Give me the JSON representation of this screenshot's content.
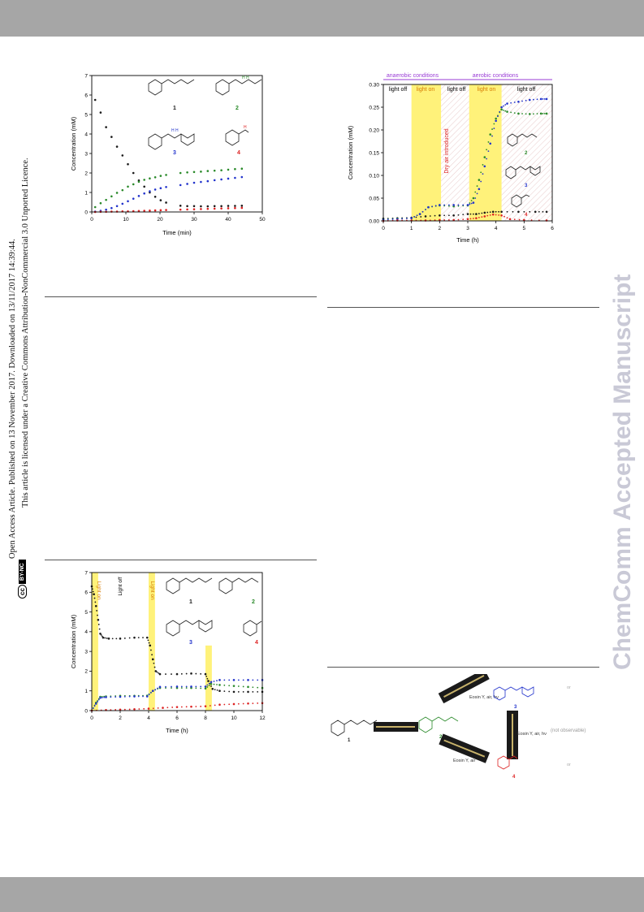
{
  "vertical_notice": {
    "line1": "Open Access Article. Published on 13 November 2017. Downloaded on 13/11/2017 14:39:44.",
    "line2": "This article is licensed under a Creative Commons Attribution-NonCommercial 3.0 Unported Licence.",
    "cc_badge": "cc",
    "license_badge": "BY-NC"
  },
  "watermark": "ChemComm Accepted Manuscript",
  "colors": {
    "black": "#1a1a1a",
    "green": "#2a8a2a",
    "blue": "#2233cc",
    "red": "#dd2222",
    "highlight": "#fff27a",
    "purple": "#9a3cd6"
  },
  "compound_labels": {
    "c1": "1",
    "c2": "2",
    "c3": "3",
    "c4": "4"
  },
  "chart_data": [
    {
      "type": "scatter",
      "xlabel": "Time (min)",
      "ylabel": "Concentration (mM)",
      "xlim": [
        0,
        50
      ],
      "ylim": [
        0,
        7
      ],
      "xticks": [
        "0",
        "10",
        "20",
        "30",
        "40",
        "50"
      ],
      "yticks": [
        "0",
        "1",
        "2",
        "3",
        "4",
        "5",
        "6",
        "7"
      ],
      "series": [
        {
          "name": "1",
          "color": "#1a1a1a",
          "points": [
            [
              1,
              5.75
            ],
            [
              2.6,
              5.1
            ],
            [
              4.2,
              4.35
            ],
            [
              5.8,
              3.85
            ],
            [
              7.4,
              3.35
            ],
            [
              9,
              2.9
            ],
            [
              10.6,
              2.45
            ],
            [
              12.2,
              2.0
            ],
            [
              13.8,
              1.62
            ],
            [
              15.4,
              1.3
            ],
            [
              17,
              1.0
            ],
            [
              18.6,
              0.78
            ],
            [
              20.2,
              0.6
            ],
            [
              21.8,
              0.48
            ],
            [
              26,
              0.32
            ],
            [
              28,
              0.3
            ],
            [
              30,
              0.3
            ],
            [
              32,
              0.29
            ],
            [
              34,
              0.29
            ],
            [
              36,
              0.3
            ],
            [
              38,
              0.3
            ],
            [
              40,
              0.31
            ],
            [
              42,
              0.31
            ],
            [
              44,
              0.32
            ]
          ]
        },
        {
          "name": "2",
          "color": "#2a8a2a",
          "points": [
            [
              1,
              0.25
            ],
            [
              2.6,
              0.45
            ],
            [
              4.2,
              0.62
            ],
            [
              5.8,
              0.8
            ],
            [
              7.4,
              0.98
            ],
            [
              9,
              1.12
            ],
            [
              10.6,
              1.3
            ],
            [
              12.2,
              1.42
            ],
            [
              13.8,
              1.55
            ],
            [
              15.4,
              1.65
            ],
            [
              17,
              1.72
            ],
            [
              18.6,
              1.78
            ],
            [
              20.2,
              1.85
            ],
            [
              21.8,
              1.9
            ],
            [
              26,
              2.0
            ],
            [
              28,
              2.03
            ],
            [
              30,
              2.05
            ],
            [
              32,
              2.07
            ],
            [
              34,
              2.1
            ],
            [
              36,
              2.12
            ],
            [
              38,
              2.14
            ],
            [
              40,
              2.17
            ],
            [
              42,
              2.2
            ],
            [
              44,
              2.22
            ]
          ]
        },
        {
          "name": "3",
          "color": "#2233cc",
          "points": [
            [
              1,
              0.02
            ],
            [
              2.6,
              0.06
            ],
            [
              4.2,
              0.12
            ],
            [
              5.8,
              0.2
            ],
            [
              7.4,
              0.3
            ],
            [
              9,
              0.42
            ],
            [
              10.6,
              0.55
            ],
            [
              12.2,
              0.68
            ],
            [
              13.8,
              0.82
            ],
            [
              15.4,
              0.95
            ],
            [
              17,
              1.06
            ],
            [
              18.6,
              1.15
            ],
            [
              20.2,
              1.22
            ],
            [
              21.8,
              1.28
            ],
            [
              26,
              1.38
            ],
            [
              28,
              1.44
            ],
            [
              30,
              1.5
            ],
            [
              32,
              1.54
            ],
            [
              34,
              1.58
            ],
            [
              36,
              1.63
            ],
            [
              38,
              1.67
            ],
            [
              40,
              1.71
            ],
            [
              42,
              1.75
            ],
            [
              44,
              1.79
            ]
          ]
        },
        {
          "name": "4",
          "color": "#dd2222",
          "points": [
            [
              1,
              0.0
            ],
            [
              2.6,
              0.01
            ],
            [
              4.2,
              0.01
            ],
            [
              5.8,
              0.02
            ],
            [
              7.4,
              0.02
            ],
            [
              9,
              0.03
            ],
            [
              10.6,
              0.03
            ],
            [
              12.2,
              0.04
            ],
            [
              13.8,
              0.05
            ],
            [
              15.4,
              0.06
            ],
            [
              17,
              0.07
            ],
            [
              18.6,
              0.08
            ],
            [
              20.2,
              0.09
            ],
            [
              21.8,
              0.1
            ],
            [
              26,
              0.12
            ],
            [
              28,
              0.13
            ],
            [
              30,
              0.14
            ],
            [
              32,
              0.15
            ],
            [
              34,
              0.16
            ],
            [
              36,
              0.17
            ],
            [
              38,
              0.18
            ],
            [
              40,
              0.19
            ],
            [
              42,
              0.2
            ],
            [
              44,
              0.21
            ]
          ]
        }
      ]
    },
    {
      "type": "scatter",
      "xlabel": "Time (h)",
      "ylabel": "Concentration (mM)",
      "xlim": [
        0,
        6
      ],
      "ylim": [
        0,
        0.3
      ],
      "xticks": [
        "0",
        "1",
        "2",
        "3",
        "4",
        "5",
        "6"
      ],
      "yticks": [
        "0.00",
        "0.05",
        "0.10",
        "0.15",
        "0.20",
        "0.25",
        "0.30"
      ],
      "conditions": [
        "anaerobic conditions",
        "aerobic conditions"
      ],
      "regions": [
        "light off",
        "light on",
        "light off",
        "light on",
        "light off"
      ],
      "annotation": "Dry air introduced",
      "series": [
        {
          "name": "1",
          "color": "#1a1a1a",
          "points": [
            [
              0,
              0.005
            ],
            [
              0.5,
              0.006
            ],
            [
              1.0,
              0.007
            ],
            [
              1.5,
              0.01
            ],
            [
              2.0,
              0.012
            ],
            [
              2.5,
              0.012
            ],
            [
              3.0,
              0.015
            ],
            [
              3.3,
              0.015
            ],
            [
              3.6,
              0.018
            ],
            [
              3.9,
              0.02
            ],
            [
              4.2,
              0.02
            ],
            [
              4.8,
              0.02
            ],
            [
              5.4,
              0.02
            ],
            [
              5.8,
              0.02
            ]
          ]
        },
        {
          "name": "2",
          "color": "#2a8a2a",
          "points": [
            [
              0,
              0.004
            ],
            [
              0.5,
              0.005
            ],
            [
              1.0,
              0.006
            ],
            [
              1.3,
              0.015
            ],
            [
              1.6,
              0.03
            ],
            [
              2.0,
              0.034
            ],
            [
              2.5,
              0.032
            ],
            [
              3.0,
              0.034
            ],
            [
              3.2,
              0.05
            ],
            [
              3.4,
              0.09
            ],
            [
              3.6,
              0.14
            ],
            [
              3.8,
              0.19
            ],
            [
              4.0,
              0.225
            ],
            [
              4.2,
              0.245
            ],
            [
              4.4,
              0.24
            ],
            [
              4.8,
              0.236
            ],
            [
              5.2,
              0.235
            ],
            [
              5.6,
              0.236
            ],
            [
              5.8,
              0.236
            ]
          ]
        },
        {
          "name": "3",
          "color": "#2233cc",
          "points": [
            [
              0,
              0.003
            ],
            [
              0.5,
              0.004
            ],
            [
              1.0,
              0.006
            ],
            [
              1.3,
              0.015
            ],
            [
              1.6,
              0.03
            ],
            [
              2.0,
              0.035
            ],
            [
              2.5,
              0.035
            ],
            [
              3.0,
              0.035
            ],
            [
              3.2,
              0.04
            ],
            [
              3.4,
              0.07
            ],
            [
              3.6,
              0.12
            ],
            [
              3.8,
              0.17
            ],
            [
              4.0,
              0.22
            ],
            [
              4.2,
              0.25
            ],
            [
              4.4,
              0.258
            ],
            [
              4.8,
              0.262
            ],
            [
              5.2,
              0.266
            ],
            [
              5.6,
              0.268
            ],
            [
              5.8,
              0.268
            ]
          ]
        },
        {
          "name": "4",
          "color": "#dd2222",
          "points": [
            [
              0,
              0.0
            ],
            [
              0.5,
              0.001
            ],
            [
              1.0,
              0.001
            ],
            [
              1.5,
              0.001
            ],
            [
              2.0,
              0.002
            ],
            [
              2.5,
              0.002
            ],
            [
              3.0,
              0.004
            ],
            [
              3.3,
              0.006
            ],
            [
              3.6,
              0.01
            ],
            [
              3.9,
              0.014
            ],
            [
              4.2,
              0.012
            ],
            [
              4.5,
              0.004
            ],
            [
              5.0,
              0.002
            ],
            [
              5.8,
              0.001
            ]
          ]
        }
      ]
    },
    {
      "type": "scatter",
      "xlabel": "Time (h)",
      "ylabel": "Concentration (mM)",
      "xlim": [
        0,
        12
      ],
      "ylim": [
        0,
        7
      ],
      "xticks": [
        "0",
        "2",
        "4",
        "6",
        "8",
        "10",
        "12"
      ],
      "yticks": [
        "0",
        "1",
        "2",
        "3",
        "4",
        "5",
        "6",
        "7"
      ],
      "labels": [
        "Light on",
        "Light off",
        "Light on"
      ],
      "series": [
        {
          "name": "1",
          "color": "#1a1a1a",
          "points": [
            [
              0,
              6.3
            ],
            [
              0.15,
              5.9
            ],
            [
              0.3,
              5.3
            ],
            [
              0.45,
              4.6
            ],
            [
              0.6,
              3.9
            ],
            [
              0.8,
              3.7
            ],
            [
              1.2,
              3.65
            ],
            [
              2,
              3.65
            ],
            [
              3,
              3.7
            ],
            [
              3.9,
              3.7
            ],
            [
              4.1,
              3.3
            ],
            [
              4.3,
              2.6
            ],
            [
              4.5,
              2.0
            ],
            [
              4.8,
              1.85
            ],
            [
              6,
              1.85
            ],
            [
              7,
              1.88
            ],
            [
              8,
              1.85
            ],
            [
              8.2,
              1.5
            ],
            [
              8.5,
              1.1
            ],
            [
              9,
              1.0
            ],
            [
              10,
              0.95
            ],
            [
              11,
              0.95
            ],
            [
              12,
              0.95
            ]
          ]
        },
        {
          "name": "2",
          "color": "#2a8a2a",
          "points": [
            [
              0,
              0.0
            ],
            [
              0.3,
              0.4
            ],
            [
              0.6,
              0.7
            ],
            [
              1,
              0.72
            ],
            [
              2,
              0.75
            ],
            [
              3,
              0.75
            ],
            [
              3.9,
              0.76
            ],
            [
              4.3,
              1.0
            ],
            [
              4.8,
              1.15
            ],
            [
              6,
              1.15
            ],
            [
              7,
              1.15
            ],
            [
              8,
              1.12
            ],
            [
              8.4,
              1.35
            ],
            [
              9,
              1.3
            ],
            [
              10,
              1.25
            ],
            [
              11,
              1.2
            ],
            [
              12,
              1.15
            ]
          ]
        },
        {
          "name": "3",
          "color": "#2233cc",
          "points": [
            [
              0,
              0.0
            ],
            [
              0.3,
              0.35
            ],
            [
              0.6,
              0.65
            ],
            [
              1,
              0.68
            ],
            [
              2,
              0.7
            ],
            [
              3,
              0.72
            ],
            [
              3.9,
              0.72
            ],
            [
              4.3,
              1.0
            ],
            [
              4.8,
              1.2
            ],
            [
              6,
              1.22
            ],
            [
              7,
              1.22
            ],
            [
              8,
              1.22
            ],
            [
              8.4,
              1.45
            ],
            [
              9,
              1.55
            ],
            [
              10,
              1.55
            ],
            [
              11,
              1.55
            ],
            [
              12,
              1.55
            ]
          ]
        },
        {
          "name": "4",
          "color": "#dd2222",
          "points": [
            [
              0,
              0.0
            ],
            [
              1,
              0.03
            ],
            [
              2,
              0.05
            ],
            [
              3,
              0.07
            ],
            [
              4,
              0.1
            ],
            [
              5,
              0.14
            ],
            [
              6,
              0.18
            ],
            [
              7,
              0.2
            ],
            [
              8,
              0.22
            ],
            [
              9,
              0.3
            ],
            [
              10,
              0.33
            ],
            [
              11,
              0.36
            ],
            [
              12,
              0.38
            ]
          ]
        }
      ]
    }
  ],
  "scheme": {
    "reagent_top": "Eosin Y, air, hν",
    "reagent_right": "Eosin Y, air, hν",
    "reagent_bottom": "Eosin Y, air",
    "side_top": "or",
    "side_bottom": "or",
    "not_observable": "(not observable)"
  }
}
